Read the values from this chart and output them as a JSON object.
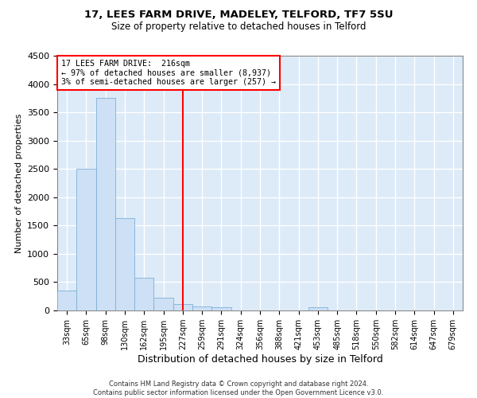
{
  "title1": "17, LEES FARM DRIVE, MADELEY, TELFORD, TF7 5SU",
  "title2": "Size of property relative to detached houses in Telford",
  "xlabel": "Distribution of detached houses by size in Telford",
  "ylabel": "Number of detached properties",
  "categories": [
    "33sqm",
    "65sqm",
    "98sqm",
    "130sqm",
    "162sqm",
    "195sqm",
    "227sqm",
    "259sqm",
    "291sqm",
    "324sqm",
    "356sqm",
    "388sqm",
    "421sqm",
    "453sqm",
    "485sqm",
    "518sqm",
    "550sqm",
    "582sqm",
    "614sqm",
    "647sqm",
    "679sqm"
  ],
  "values": [
    350,
    2500,
    3750,
    1625,
    575,
    225,
    110,
    65,
    50,
    0,
    0,
    0,
    0,
    50,
    0,
    0,
    0,
    0,
    0,
    0,
    0
  ],
  "bar_color": "#cde0f5",
  "bar_edge_color": "#7fb0d8",
  "vline_x": 6.0,
  "annotation_text1": "17 LEES FARM DRIVE:  216sqm",
  "annotation_text2": "← 97% of detached houses are smaller (8,937)",
  "annotation_text3": "3% of semi-detached houses are larger (257) →",
  "annotation_box_color": "white",
  "annotation_box_edge_color": "red",
  "vline_color": "red",
  "ylim": [
    0,
    4500
  ],
  "yticks": [
    0,
    500,
    1000,
    1500,
    2000,
    2500,
    3000,
    3500,
    4000,
    4500
  ],
  "footer1": "Contains HM Land Registry data © Crown copyright and database right 2024.",
  "footer2": "Contains public sector information licensed under the Open Government Licence v3.0.",
  "background_color": "#ddeaf8",
  "grid_color": "white",
  "title1_fontsize": 9.5,
  "title2_fontsize": 8.5
}
